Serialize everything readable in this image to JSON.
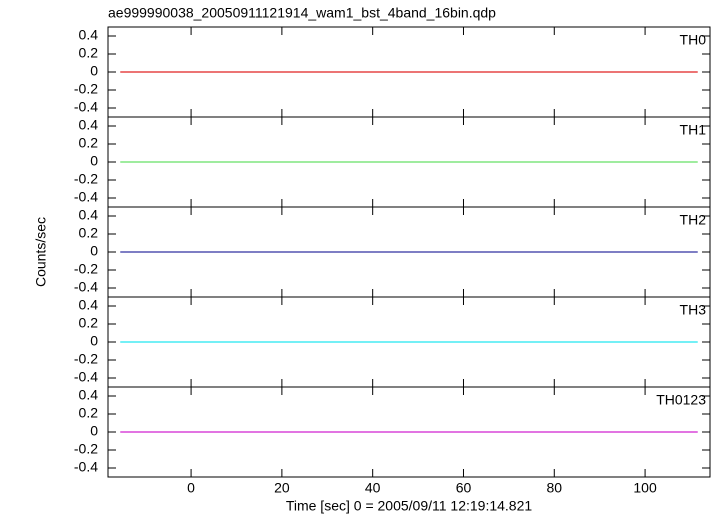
{
  "chart_data": {
    "type": "line",
    "title": "ae999990038_20050911121914_wam1_bst_4band_16bin.qdp",
    "xlabel": "Time [sec] 0 = 2005/09/11 12:19:14.821",
    "ylabel": "Counts/sec",
    "xlim": [
      -18.3,
      114.3
    ],
    "xticks": [
      0,
      20,
      40,
      60,
      80,
      100
    ],
    "ylim": [
      -0.5,
      0.5
    ],
    "yticks": [
      -0.4,
      -0.2,
      0,
      0.2,
      0.4
    ],
    "x": [
      -15.6,
      111.6
    ],
    "series": [
      {
        "name": "TH0",
        "color": "#e02020",
        "values": [
          0,
          0
        ]
      },
      {
        "name": "TH1",
        "color": "#66e066",
        "values": [
          0,
          0
        ]
      },
      {
        "name": "TH2",
        "color": "#3030a0",
        "values": [
          0,
          0
        ]
      },
      {
        "name": "TH3",
        "color": "#20e8f0",
        "values": [
          0,
          0
        ]
      },
      {
        "name": "TH0123",
        "color": "#d020d0",
        "values": [
          0,
          0
        ]
      }
    ]
  }
}
